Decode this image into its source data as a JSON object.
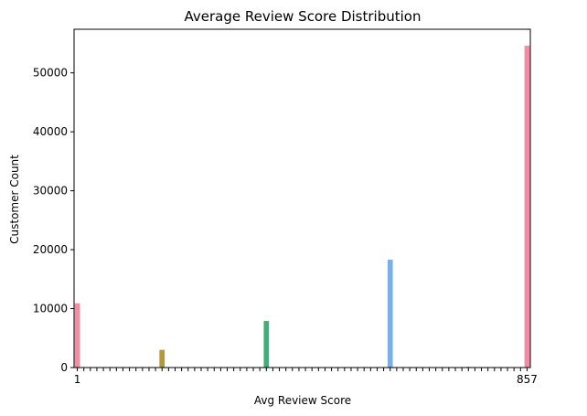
{
  "chart_data": {
    "type": "bar",
    "title": "Average Review Score Distribution",
    "xlabel": "Avg Review Score",
    "ylabel": "Customer Count",
    "ylim": [
      0,
      57400
    ],
    "yticks": [
      0,
      10000,
      20000,
      30000,
      40000,
      50000
    ],
    "grid": false,
    "legend": "none",
    "visible_tick_labels": {
      "first": "1",
      "last": "857"
    },
    "category_count": 70,
    "bars": [
      {
        "index": 0,
        "value": 10900,
        "color": "#f08fa3"
      },
      {
        "index": 13,
        "value": 3000,
        "color": "#b5973a"
      },
      {
        "index": 17,
        "value": 40,
        "color": "#9da23a"
      },
      {
        "index": 20,
        "value": 40,
        "color": "#8fa63c"
      },
      {
        "index": 29,
        "value": 7900,
        "color": "#3fae7a"
      },
      {
        "index": 38,
        "value": 50,
        "color": "#3ab0a3"
      },
      {
        "index": 41,
        "value": 40,
        "color": "#3bb0b8"
      },
      {
        "index": 48,
        "value": 18300,
        "color": "#7aafe8"
      },
      {
        "index": 54,
        "value": 40,
        "color": "#a89bf0"
      },
      {
        "index": 60,
        "value": 120,
        "color": "#d58ef0"
      },
      {
        "index": 62,
        "value": 60,
        "color": "#e88fd8"
      },
      {
        "index": 69,
        "value": 54600,
        "color": "#f08fa3"
      }
    ]
  }
}
